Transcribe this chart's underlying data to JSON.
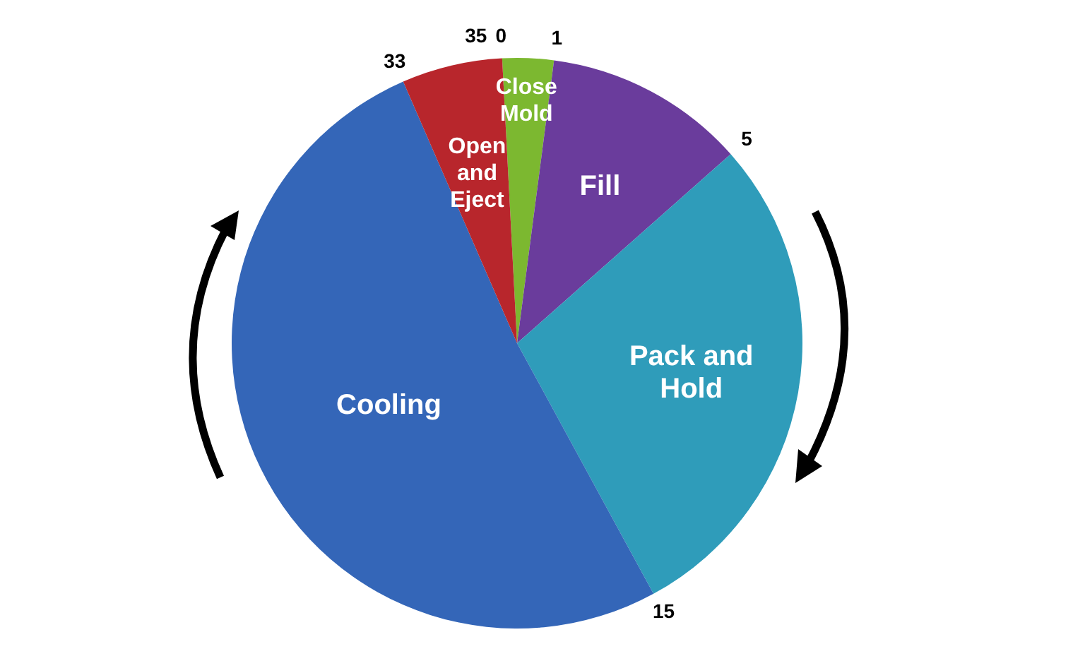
{
  "chart_data": {
    "type": "pie",
    "categories": [
      "Close Mold",
      "Fill",
      "Pack and Hold",
      "Cooling",
      "Open and Eject"
    ],
    "values": [
      2.9,
      11.4,
      28.6,
      51.4,
      5.7
    ],
    "colors": [
      "#7cb830",
      "#6a3c9c",
      "#2f9cba",
      "#3466b8",
      "#b8262c"
    ],
    "annotations": [
      "0",
      "1",
      "5",
      "15",
      "33",
      "35"
    ]
  }
}
